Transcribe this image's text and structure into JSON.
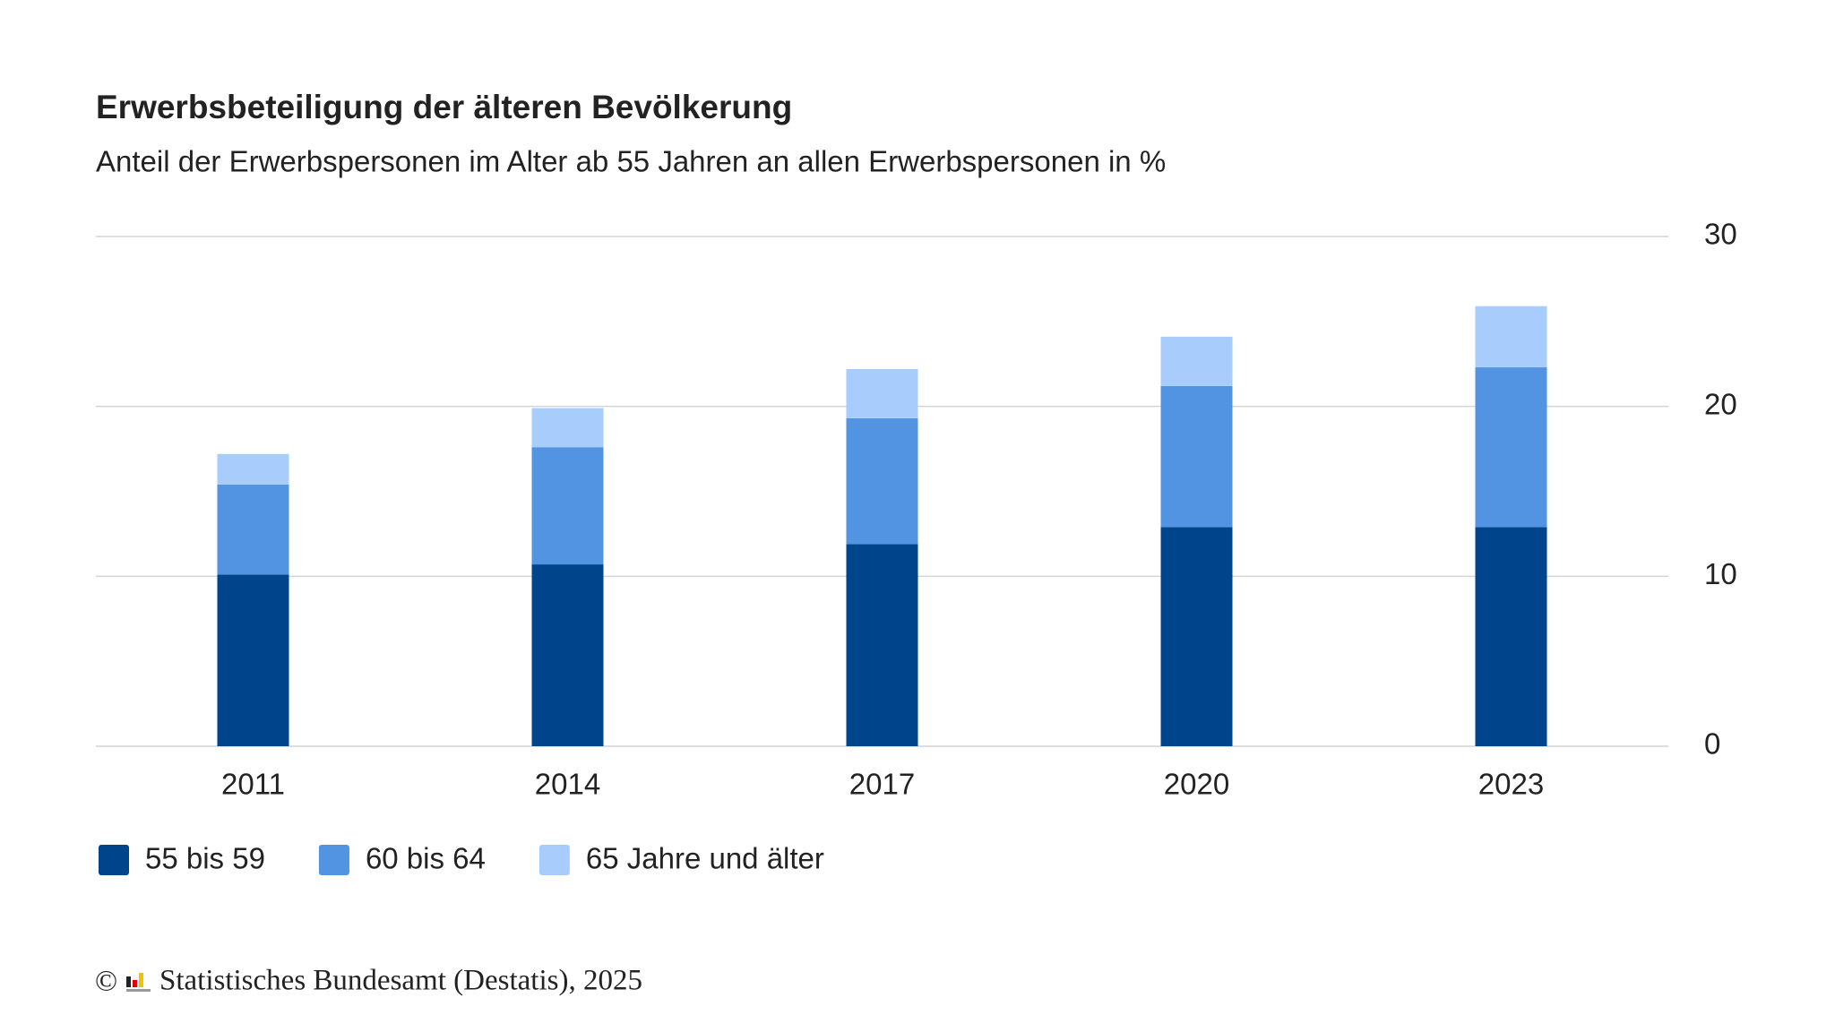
{
  "chart_data": {
    "type": "stacked_bar",
    "title": "Erwerbsbeteiligung der älteren Bevölkerung",
    "subtitle": "Anteil der Erwerbspersonen im Alter ab 55 Jahren an allen Erwerbspersonen in %",
    "categories": [
      "2011",
      "2014",
      "2017",
      "2020",
      "2023"
    ],
    "series": [
      {
        "name": "55 bis 59",
        "color": "#00448c",
        "values": [
          10.1,
          10.7,
          11.9,
          12.9,
          12.9
        ]
      },
      {
        "name": "60 bis 64",
        "color": "#5294e2",
        "values": [
          5.3,
          6.9,
          7.4,
          8.3,
          9.4
        ]
      },
      {
        "name": "65 Jahre und älter",
        "color": "#a8cdfc",
        "values": [
          1.8,
          2.3,
          2.9,
          2.9,
          3.6
        ]
      }
    ],
    "ylim": [
      0,
      30
    ],
    "yticks": [
      0,
      10,
      20,
      30
    ],
    "grid": true,
    "y_axis_side": "right",
    "source": "Statistisches Bundesamt (Destatis), 2025"
  }
}
